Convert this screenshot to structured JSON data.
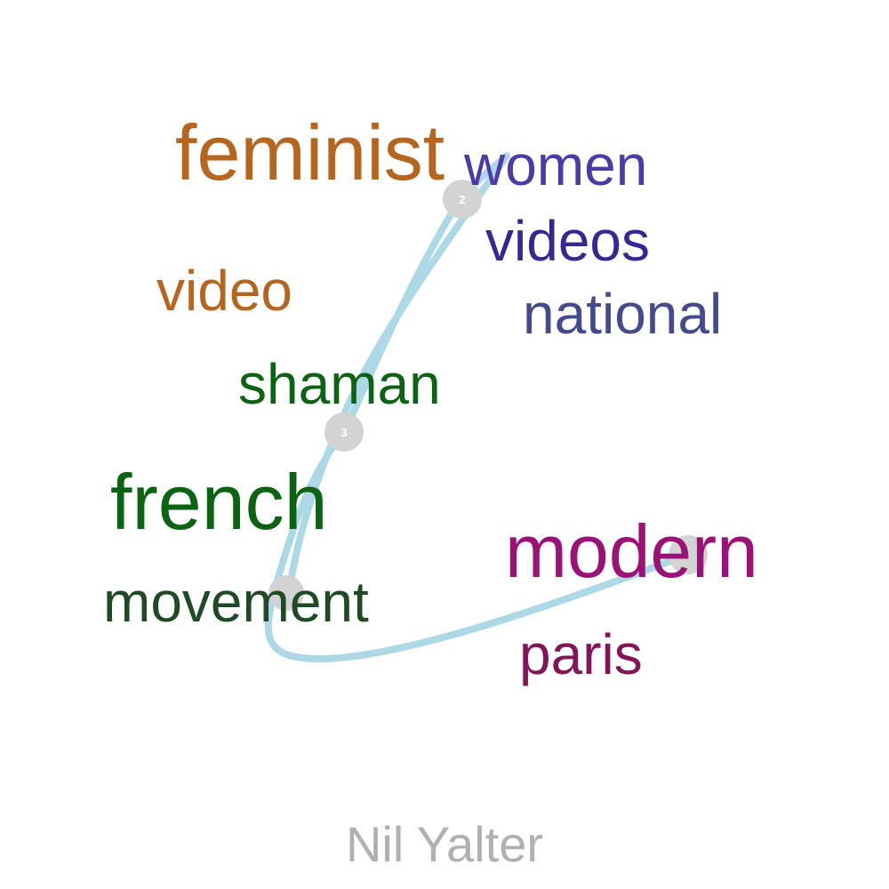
{
  "title": "Nil Yalter",
  "words": [
    {
      "id": "feminist",
      "text": "feminist",
      "color": "#b5651d"
    },
    {
      "id": "video",
      "text": "video",
      "color": "#b5651d"
    },
    {
      "id": "women",
      "text": "women",
      "color": "#4b3aa8"
    },
    {
      "id": "videos",
      "text": "videos",
      "color": "#3a2596"
    },
    {
      "id": "national",
      "text": "national",
      "color": "#434a8e"
    },
    {
      "id": "shaman",
      "text": "shaman",
      "color": "#0b6313"
    },
    {
      "id": "french",
      "text": "french",
      "color": "#0b6313"
    },
    {
      "id": "movement",
      "text": "movement",
      "color": "#1f4a25"
    },
    {
      "id": "modern",
      "text": "modern",
      "color": "#9a1277"
    },
    {
      "id": "paris",
      "text": "paris",
      "color": "#821457"
    }
  ],
  "markers": [
    {
      "label": "2"
    },
    {
      "label": "3"
    },
    {
      "label": ""
    },
    {
      "label": ""
    }
  ],
  "path_color": "#add8e6",
  "marker_color": "#d3d3d3"
}
